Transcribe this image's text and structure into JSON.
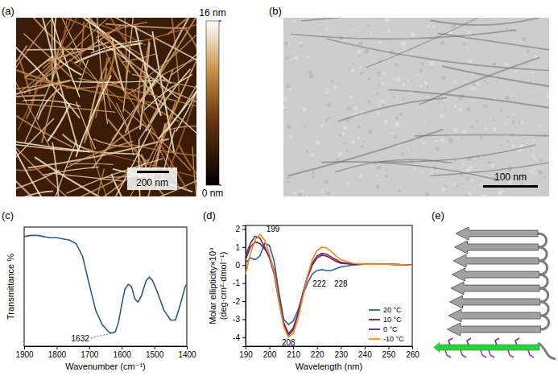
{
  "chart_data": [
    {
      "type": "afm",
      "panel_label": "(a)",
      "scale_bar_label": "200 nm",
      "colorbar": {
        "range": [
          0,
          16
        ],
        "ticks": [
          {
            "value": 16,
            "label": "16 nm"
          },
          {
            "value": 0,
            "label": "0 nm"
          }
        ]
      }
    },
    {
      "type": "tem",
      "panel_label": "(b)",
      "scale_bar_label": "100 nm"
    },
    {
      "type": "line",
      "panel_label": "(c)",
      "x_label": "Wavenumber (cm⁻¹)",
      "y_label": "Transmittance %",
      "x": [
        1900,
        1880,
        1860,
        1840,
        1820,
        1800,
        1780,
        1760,
        1740,
        1720,
        1700,
        1680,
        1660,
        1640,
        1632,
        1620,
        1610,
        1600,
        1590,
        1580,
        1570,
        1560,
        1550,
        1540,
        1525,
        1515,
        1505,
        1490,
        1470,
        1450,
        1435,
        1420,
        1405,
        1400
      ],
      "values": [
        92,
        93,
        93,
        92,
        91,
        91,
        90,
        89,
        86,
        75,
        52,
        30,
        18,
        12,
        11,
        12,
        20,
        35,
        48,
        52,
        50,
        40,
        37,
        42,
        55,
        58,
        55,
        45,
        30,
        22,
        22,
        35,
        50,
        52
      ],
      "color": "#2b5d7e",
      "xlim": [
        1900,
        1400
      ],
      "xticks": [
        1900,
        1800,
        1700,
        1600,
        1500,
        1400
      ],
      "ylim": [
        0,
        100
      ],
      "tick_labels": "x",
      "annotations": [
        {
          "label": "1632",
          "x": 1700,
          "y": 4,
          "target_x": 1632,
          "target_y": 11
        }
      ]
    },
    {
      "type": "line",
      "panel_label": "(d)",
      "x_label": "Wavelength (nm)",
      "y_label": [
        "Molar ellipticity×10⁴",
        "(deg·cm²·dmol⁻¹)"
      ],
      "x": [
        190,
        192,
        194,
        196,
        198,
        200,
        202,
        204,
        206,
        208,
        210,
        212,
        214,
        216,
        218,
        220,
        222,
        224,
        226,
        228,
        230,
        235,
        240,
        250,
        260
      ],
      "series": [
        {
          "name": "20 °C",
          "color": "#2a6496",
          "values": [
            0.1,
            0.4,
            0.3,
            0.5,
            1.2,
            1.1,
            0.2,
            -1.5,
            -3.0,
            -3.3,
            -3.1,
            -2.5,
            -1.7,
            -1.0,
            -0.5,
            -0.3,
            -0.25,
            -0.3,
            -0.3,
            -0.2,
            -0.1,
            0,
            0.05,
            0.05,
            0
          ]
        },
        {
          "name": "10 °C",
          "color": "#8b1a2b",
          "values": [
            0.3,
            1.0,
            1.3,
            1.2,
            0.9,
            0.5,
            -0.3,
            -1.8,
            -3.2,
            -3.8,
            -3.5,
            -2.7,
            -1.6,
            -0.7,
            0,
            0.4,
            0.55,
            0.5,
            0.35,
            0.2,
            0.1,
            0.05,
            0.05,
            0.05,
            0
          ]
        },
        {
          "name": "0 °C",
          "color": "#5b2a7a",
          "values": [
            0.5,
            1.2,
            1.6,
            1.5,
            1.0,
            0.4,
            -0.5,
            -2.0,
            -3.3,
            -3.9,
            -3.6,
            -2.7,
            -1.6,
            -0.6,
            0.1,
            0.5,
            0.65,
            0.6,
            0.45,
            0.3,
            0.15,
            0.05,
            0.05,
            0.05,
            0
          ]
        },
        {
          "name": "-10 °C",
          "color": "#f08c1e",
          "values": [
            -0.5,
            0.6,
            1.4,
            1.7,
            1.4,
            0.6,
            -0.4,
            -2.0,
            -3.4,
            -4.0,
            -3.8,
            -3.0,
            -1.8,
            -0.6,
            0.3,
            0.8,
            1.0,
            0.95,
            0.75,
            0.5,
            0.3,
            0.1,
            0.05,
            0.05,
            0
          ]
        }
      ],
      "xlim": [
        190,
        260
      ],
      "xticks": [
        190,
        200,
        210,
        220,
        230,
        240,
        250,
        260
      ],
      "ylim": [
        -4.5,
        2.2
      ],
      "yticks": [
        -4,
        -3,
        -2,
        -1,
        0,
        1,
        2
      ],
      "legend": "bottom-right",
      "annotations": [
        {
          "label": "199",
          "x": 201.5,
          "y": 1.85
        },
        {
          "label": "208",
          "x": 208,
          "y": -4.45
        },
        {
          "label": "222",
          "x": 221,
          "y": -1.2
        },
        {
          "label": "228",
          "x": 230,
          "y": -1.2
        }
      ]
    },
    {
      "type": "model",
      "panel_label": "(e)"
    }
  ]
}
